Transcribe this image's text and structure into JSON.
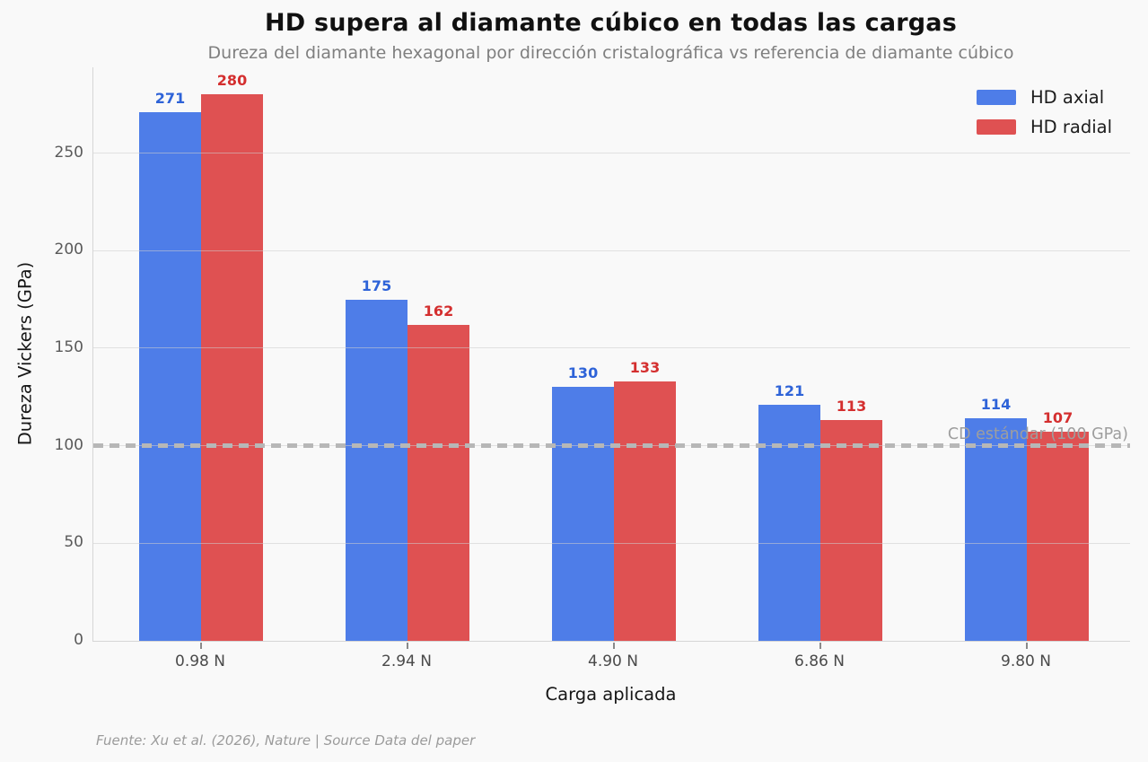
{
  "title": "HD supera al diamante cúbico en todas las cargas",
  "subtitle": "Dureza del diamante hexagonal por dirección cristalográfica vs referencia de diamante cúbico",
  "footer": "Fuente: Xu et al. (2026), Nature | Source Data del paper",
  "colors": {
    "background": "#f9f9f9",
    "axial_bar": "#4e7de8",
    "radial_bar": "#df5152",
    "axial_value_label": "#2e63d8",
    "radial_value_label": "#d42f2f",
    "reference_line": "#b7b7b7",
    "grid": "#e2e2e2"
  },
  "chart_data": {
    "type": "bar",
    "title": "HD supera al diamante cúbico en todas las cargas",
    "subtitle": "Dureza del diamante hexagonal por dirección cristalográfica vs referencia de diamante cúbico",
    "categories": [
      "0.98 N",
      "2.94 N",
      "4.90 N",
      "6.86 N",
      "9.80 N"
    ],
    "series": [
      {
        "name": "HD axial",
        "values": [
          271,
          175,
          130,
          121,
          114
        ],
        "color": "#4e7de8",
        "label_color": "#2e63d8"
      },
      {
        "name": "HD radial",
        "values": [
          280,
          162,
          133,
          113,
          107
        ],
        "color": "#df5152",
        "label_color": "#d42f2f"
      }
    ],
    "xlabel": "Carga aplicada",
    "ylabel": "Dureza Vickers (GPa)",
    "ylim": [
      0,
      294
    ],
    "yticks": [
      0,
      50,
      100,
      150,
      200,
      250
    ],
    "grid": true,
    "legend_position": "upper right",
    "reference_line": {
      "value": 100,
      "label": "CD estándar (100 GPa)",
      "style": "dashed",
      "color": "#b7b7b7"
    }
  }
}
